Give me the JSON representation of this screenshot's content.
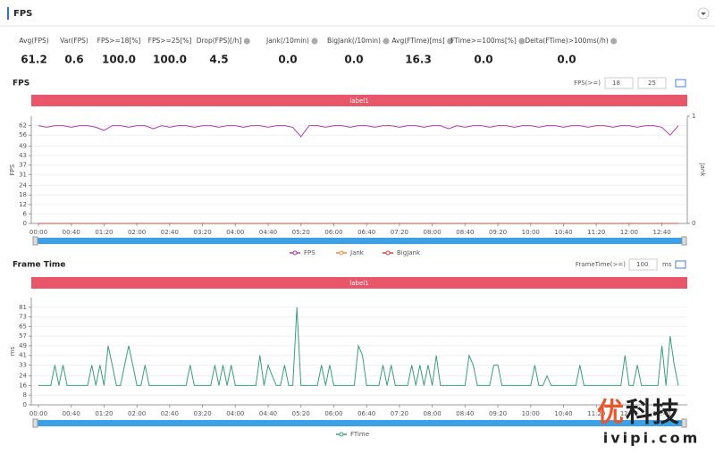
{
  "header": {
    "title": "FPS"
  },
  "metrics": [
    {
      "label": "Avg(FPS)",
      "value": "61.2"
    },
    {
      "label": "Var(FPS)",
      "value": "0.6"
    },
    {
      "label": "FPS>=18[%]",
      "value": "100.0"
    },
    {
      "label": "FPS>=25[%]",
      "value": "100.0"
    },
    {
      "label": "Drop(FPS)[/h]",
      "value": "4.5"
    },
    {
      "label": "Jank(/10min)",
      "value": "0.0"
    },
    {
      "label": "BigJank(/10min)",
      "value": "0.0"
    },
    {
      "label": "Avg(FTime)[ms]",
      "value": "16.3"
    },
    {
      "label": "FTime>=100ms[%]",
      "value": "0.0"
    },
    {
      "label": "Delta(FTime)>100ms(/h)",
      "value": "0.0"
    }
  ],
  "fps_section": {
    "title": "FPS",
    "filter_label": "FPS(>=)",
    "inputs": [
      "18",
      "25"
    ]
  },
  "ftime_section": {
    "title": "Frame Time",
    "filter_label": "FrameTime(>=)",
    "inputs": [
      "100"
    ],
    "unit": "ms"
  },
  "watermark": {
    "text": [
      "优",
      "科技"
    ],
    "url": "ivipi.com"
  },
  "chart_data": [
    {
      "type": "line",
      "band_label": "label1",
      "ylabel": "FPS",
      "y2label": "Jank",
      "xlim": [
        0,
        780
      ],
      "xticks": [
        {
          "value": 0,
          "label": "00:00"
        },
        {
          "value": 40,
          "label": "00:40"
        },
        {
          "value": 80,
          "label": "01:20"
        },
        {
          "value": 120,
          "label": "02:00"
        },
        {
          "value": 160,
          "label": "02:40"
        },
        {
          "value": 200,
          "label": "03:20"
        },
        {
          "value": 240,
          "label": "04:00"
        },
        {
          "value": 280,
          "label": "04:40"
        },
        {
          "value": 320,
          "label": "05:20"
        },
        {
          "value": 360,
          "label": "06:00"
        },
        {
          "value": 400,
          "label": "06:40"
        },
        {
          "value": 440,
          "label": "07:20"
        },
        {
          "value": 480,
          "label": "08:00"
        },
        {
          "value": 520,
          "label": "08:40"
        },
        {
          "value": 560,
          "label": "09:20"
        },
        {
          "value": 600,
          "label": "10:00"
        },
        {
          "value": 640,
          "label": "10:40"
        },
        {
          "value": 680,
          "label": "11:20"
        },
        {
          "value": 720,
          "label": "12:00"
        },
        {
          "value": 760,
          "label": "12:40"
        }
      ],
      "ylim": [
        0,
        68
      ],
      "yticks": [
        0,
        6,
        12,
        18,
        24,
        31,
        37,
        43,
        49,
        56,
        62
      ],
      "y2lim": [
        0,
        1
      ],
      "y2ticks": [
        0,
        1
      ],
      "grid": true,
      "x": [
        0,
        10,
        20,
        30,
        40,
        50,
        60,
        70,
        80,
        90,
        100,
        110,
        120,
        130,
        140,
        150,
        160,
        170,
        180,
        190,
        200,
        210,
        220,
        230,
        240,
        250,
        260,
        270,
        280,
        290,
        300,
        310,
        320,
        330,
        340,
        350,
        360,
        370,
        380,
        390,
        400,
        410,
        420,
        430,
        440,
        450,
        460,
        470,
        480,
        490,
        500,
        510,
        520,
        530,
        540,
        550,
        560,
        570,
        580,
        590,
        600,
        610,
        620,
        630,
        640,
        650,
        660,
        670,
        680,
        690,
        700,
        710,
        720,
        730,
        740,
        750,
        760,
        770,
        780
      ],
      "series": [
        {
          "name": "FPS",
          "color": "#b03cb0",
          "values": [
            62,
            61,
            62,
            62,
            61,
            62,
            62,
            61,
            59,
            62,
            62,
            61,
            62,
            62,
            60,
            62,
            61,
            62,
            62,
            61,
            62,
            62,
            61,
            62,
            62,
            61,
            62,
            62,
            61,
            62,
            62,
            61,
            55,
            62,
            62,
            61,
            62,
            62,
            61,
            62,
            62,
            61,
            62,
            62,
            61,
            62,
            62,
            61,
            62,
            62,
            60,
            62,
            61,
            62,
            62,
            61,
            62,
            62,
            61,
            62,
            62,
            61,
            62,
            62,
            61,
            62,
            62,
            61,
            62,
            62,
            61,
            62,
            62,
            61,
            62,
            62,
            61,
            56,
            62
          ]
        },
        {
          "name": "Jank",
          "color": "#f08c3a",
          "axis": "y2",
          "values": [
            0,
            0,
            0,
            0,
            0,
            0,
            0,
            0,
            0,
            0,
            0,
            0,
            0,
            0,
            0,
            0,
            0,
            0,
            0,
            0,
            0,
            0,
            0,
            0,
            0,
            0,
            0,
            0,
            0,
            0,
            0,
            0,
            0,
            0,
            0,
            0,
            0,
            0,
            0,
            0,
            0,
            0,
            0,
            0,
            0,
            0,
            0,
            0,
            0,
            0,
            0,
            0,
            0,
            0,
            0,
            0,
            0,
            0,
            0,
            0,
            0,
            0,
            0,
            0,
            0,
            0,
            0,
            0,
            0,
            0,
            0,
            0,
            0,
            0,
            0,
            0,
            0,
            0,
            0
          ]
        },
        {
          "name": "BigJank",
          "color": "#d9463a",
          "axis": "y2",
          "values": [
            0,
            0,
            0,
            0,
            0,
            0,
            0,
            0,
            0,
            0,
            0,
            0,
            0,
            0,
            0,
            0,
            0,
            0,
            0,
            0,
            0,
            0,
            0,
            0,
            0,
            0,
            0,
            0,
            0,
            0,
            0,
            0,
            0,
            0,
            0,
            0,
            0,
            0,
            0,
            0,
            0,
            0,
            0,
            0,
            0,
            0,
            0,
            0,
            0,
            0,
            0,
            0,
            0,
            0,
            0,
            0,
            0,
            0,
            0,
            0,
            0,
            0,
            0,
            0,
            0,
            0,
            0,
            0,
            0,
            0,
            0,
            0,
            0,
            0,
            0,
            0,
            0,
            0,
            0
          ]
        }
      ]
    },
    {
      "type": "line",
      "band_label": "label1",
      "ylabel": "ms",
      "xlim": [
        0,
        780
      ],
      "xticks": [
        {
          "value": 0,
          "label": "00:00"
        },
        {
          "value": 40,
          "label": "00:40"
        },
        {
          "value": 80,
          "label": "01:20"
        },
        {
          "value": 120,
          "label": "02:00"
        },
        {
          "value": 160,
          "label": "02:40"
        },
        {
          "value": 200,
          "label": "03:20"
        },
        {
          "value": 240,
          "label": "04:00"
        },
        {
          "value": 280,
          "label": "04:40"
        },
        {
          "value": 320,
          "label": "05:20"
        },
        {
          "value": 360,
          "label": "06:00"
        },
        {
          "value": 400,
          "label": "06:40"
        },
        {
          "value": 440,
          "label": "07:20"
        },
        {
          "value": 480,
          "label": "08:00"
        },
        {
          "value": 520,
          "label": "08:40"
        },
        {
          "value": 560,
          "label": "09:20"
        },
        {
          "value": 600,
          "label": "10:00"
        },
        {
          "value": 640,
          "label": "10:40"
        },
        {
          "value": 680,
          "label": "11:20"
        },
        {
          "value": 720,
          "label": "12:00"
        },
        {
          "value": 760,
          "label": "12:40"
        }
      ],
      "ylim": [
        0,
        89
      ],
      "yticks": [
        0,
        8,
        16,
        24,
        33,
        41,
        49,
        57,
        65,
        73,
        81
      ],
      "grid": true,
      "x": [
        0,
        5,
        10,
        15,
        20,
        25,
        30,
        35,
        40,
        45,
        50,
        55,
        60,
        65,
        70,
        75,
        80,
        85,
        90,
        95,
        100,
        105,
        110,
        115,
        120,
        125,
        130,
        135,
        140,
        145,
        150,
        155,
        160,
        165,
        170,
        175,
        180,
        185,
        190,
        195,
        200,
        205,
        210,
        215,
        220,
        225,
        230,
        235,
        240,
        245,
        250,
        255,
        260,
        265,
        270,
        275,
        280,
        285,
        290,
        295,
        300,
        305,
        310,
        315,
        320,
        325,
        330,
        335,
        340,
        345,
        350,
        355,
        360,
        365,
        370,
        375,
        380,
        385,
        390,
        395,
        400,
        405,
        410,
        415,
        420,
        425,
        430,
        435,
        440,
        445,
        450,
        455,
        460,
        465,
        470,
        475,
        480,
        485,
        490,
        495,
        500,
        505,
        510,
        515,
        520,
        525,
        530,
        535,
        540,
        545,
        550,
        555,
        560,
        565,
        570,
        575,
        580,
        585,
        590,
        595,
        600,
        605,
        610,
        615,
        620,
        625,
        630,
        635,
        640,
        645,
        650,
        655,
        660,
        665,
        670,
        675,
        680,
        685,
        690,
        695,
        700,
        705,
        710,
        715,
        720,
        725,
        730,
        735,
        740,
        745,
        750,
        755,
        760,
        765,
        770,
        775,
        780
      ],
      "series": [
        {
          "name": "FTime",
          "color": "#3a9e7e",
          "values": [
            16,
            16,
            16,
            16,
            33,
            16,
            33,
            16,
            16,
            16,
            16,
            16,
            16,
            33,
            16,
            33,
            16,
            49,
            33,
            16,
            16,
            33,
            49,
            33,
            16,
            16,
            33,
            16,
            16,
            16,
            16,
            16,
            16,
            16,
            16,
            16,
            16,
            33,
            16,
            16,
            16,
            16,
            16,
            33,
            16,
            33,
            16,
            33,
            16,
            16,
            16,
            16,
            16,
            16,
            41,
            16,
            33,
            24,
            16,
            16,
            33,
            16,
            16,
            81,
            16,
            16,
            16,
            16,
            16,
            33,
            16,
            33,
            16,
            16,
            16,
            16,
            16,
            16,
            49,
            41,
            16,
            16,
            16,
            16,
            33,
            16,
            33,
            16,
            16,
            16,
            16,
            33,
            16,
            33,
            16,
            33,
            16,
            41,
            16,
            16,
            16,
            16,
            16,
            16,
            16,
            41,
            33,
            16,
            16,
            16,
            16,
            33,
            33,
            16,
            16,
            16,
            16,
            16,
            16,
            16,
            16,
            33,
            16,
            16,
            24,
            16,
            16,
            16,
            16,
            16,
            16,
            16,
            33,
            16,
            16,
            16,
            16,
            16,
            16,
            16,
            16,
            16,
            16,
            41,
            16,
            16,
            33,
            16,
            16,
            16,
            16,
            16,
            49,
            16,
            57,
            33,
            16
          ]
        }
      ]
    }
  ]
}
